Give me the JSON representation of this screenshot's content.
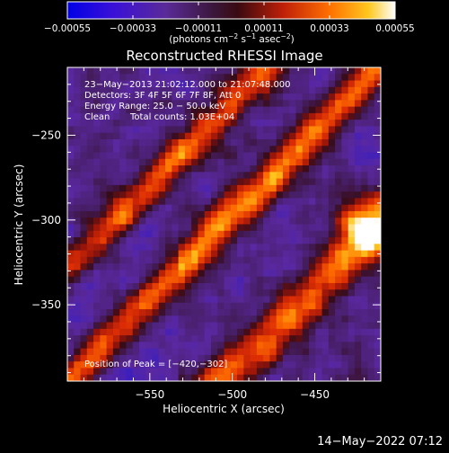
{
  "chart_data": {
    "type": "heatmap",
    "title": "Reconstructed RHESSI Image",
    "xlabel": "Heliocentric X (arcsec)",
    "ylabel": "Heliocentric Y (arcsec)",
    "xlim": [
      -600,
      -410
    ],
    "ylim": [
      -395,
      -210
    ],
    "x_ticks": [
      {
        "value": -550,
        "label": "−550"
      },
      {
        "value": -500,
        "label": "−500"
      },
      {
        "value": -450,
        "label": "−450"
      }
    ],
    "y_ticks": [
      {
        "value": -250,
        "label": "−250"
      },
      {
        "value": -300,
        "label": "−300"
      },
      {
        "value": -350,
        "label": "−350"
      }
    ],
    "colorbar": {
      "min": -0.00055,
      "max": 0.00055,
      "tick_values": [
        -0.00055,
        -0.00033,
        -0.00011,
        0.00011,
        0.00033,
        0.00055
      ],
      "ticks": [
        "−0.00055",
        "−0.00033",
        "−0.00011",
        "0.00011",
        "0.00033",
        "0.00055"
      ],
      "unit_label": "(photons cm",
      "unit_sup1": "−2",
      "unit_mid": " s",
      "unit_sup2": "−1",
      "unit_mid2": " asec",
      "unit_sup3": "−2",
      "unit_end": ")"
    },
    "annotations": {
      "time_range": "23−May−2013 21:02:12.000 to 21:07:48.000",
      "detectors": "Detectors: 3F 4F 5F 6F 7F 8F, Att 0",
      "energy_range": "Energy Range: 25.0 − 50.0 keV",
      "method": "Clean",
      "total_counts": "Total counts: 1.03E+04",
      "peak_position": "Position of Peak = [−420,−302]"
    },
    "peak": {
      "x": -420,
      "y": -302
    },
    "grid": false,
    "legend": "none"
  },
  "footer": {
    "timestamp": "14−May−2022 07:12"
  }
}
